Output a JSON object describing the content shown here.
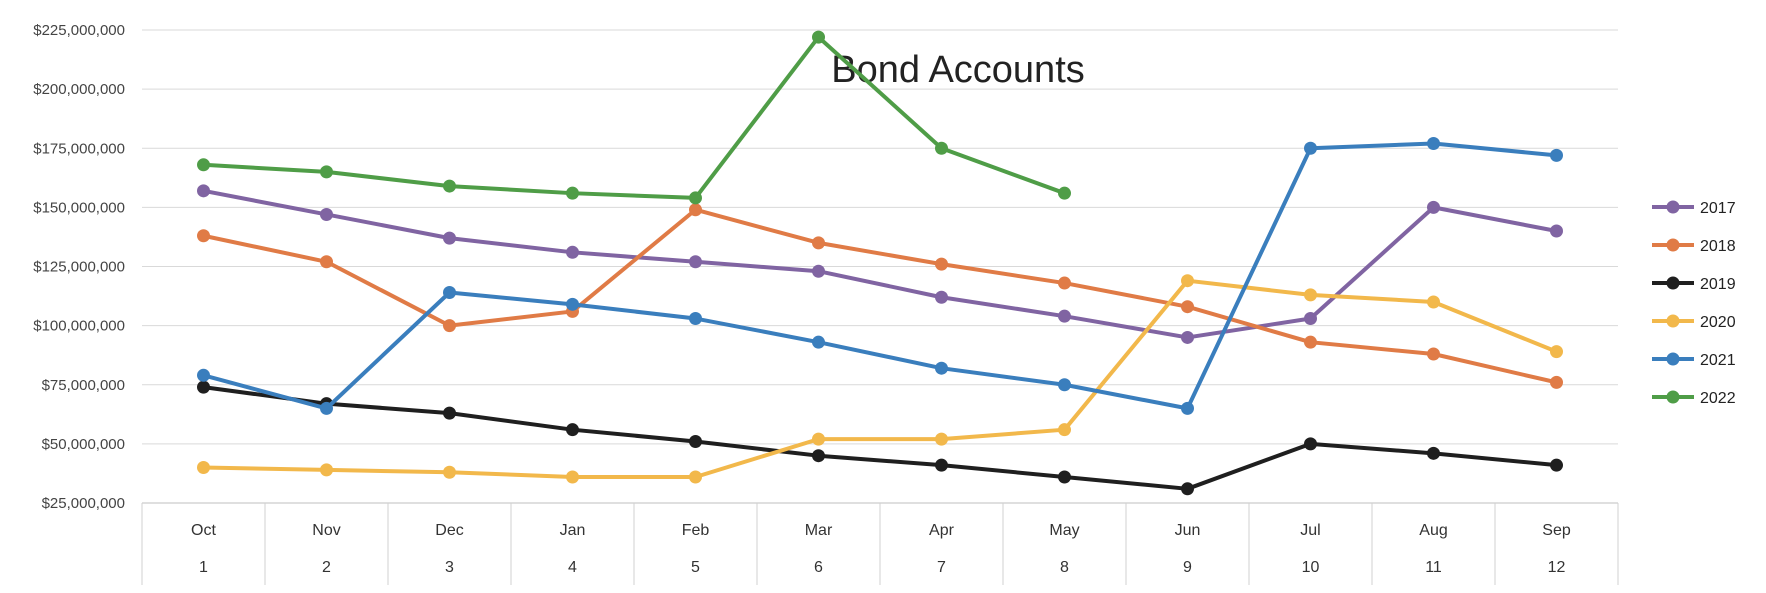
{
  "chart_data": {
    "type": "line",
    "title": "Bond Accounts",
    "xlabel": "",
    "ylabel": "",
    "categories": [
      "Oct",
      "Nov",
      "Dec",
      "Jan",
      "Feb",
      "Mar",
      "Apr",
      "May",
      "Jun",
      "Jul",
      "Aug",
      "Sep"
    ],
    "category_numbers": [
      "1",
      "2",
      "3",
      "4",
      "5",
      "6",
      "7",
      "8",
      "9",
      "10",
      "11",
      "12"
    ],
    "ylim": [
      25000000,
      225000000
    ],
    "y_ticks": [
      "$25,000,000",
      "$50,000,000",
      "$75,000,000",
      "$100,000,000",
      "$125,000,000",
      "$150,000,000",
      "$175,000,000",
      "$200,000,000",
      "$225,000,000"
    ],
    "y_tick_values": [
      25000000,
      50000000,
      75000000,
      100000000,
      125000000,
      150000000,
      175000000,
      200000000,
      225000000
    ],
    "grid": true,
    "legend": "right",
    "series": [
      {
        "name": "2017",
        "color": "#8064a2",
        "values": [
          157000000,
          147000000,
          137000000,
          131000000,
          127000000,
          123000000,
          112000000,
          104000000,
          95000000,
          103000000,
          150000000,
          140000000
        ]
      },
      {
        "name": "2018",
        "color": "#e07b46",
        "values": [
          138000000,
          127000000,
          100000000,
          106000000,
          149000000,
          135000000,
          126000000,
          118000000,
          108000000,
          93000000,
          88000000,
          76000000
        ]
      },
      {
        "name": "2019",
        "color": "#1f1f1f",
        "values": [
          74000000,
          67000000,
          63000000,
          56000000,
          51000000,
          45000000,
          41000000,
          36000000,
          31000000,
          50000000,
          46000000,
          41000000
        ]
      },
      {
        "name": "2020",
        "color": "#f2b84b",
        "values": [
          40000000,
          39000000,
          38000000,
          36000000,
          36000000,
          52000000,
          52000000,
          56000000,
          119000000,
          113000000,
          110000000,
          89000000
        ]
      },
      {
        "name": "2021",
        "color": "#3a7ebd",
        "values": [
          79000000,
          65000000,
          114000000,
          109000000,
          103000000,
          93000000,
          82000000,
          75000000,
          65000000,
          175000000,
          177000000,
          172000000
        ]
      },
      {
        "name": "2022",
        "color": "#4f9d47",
        "values": [
          168000000,
          165000000,
          159000000,
          156000000,
          154000000,
          222000000,
          175000000,
          156000000,
          null,
          null,
          null,
          null
        ]
      }
    ]
  }
}
